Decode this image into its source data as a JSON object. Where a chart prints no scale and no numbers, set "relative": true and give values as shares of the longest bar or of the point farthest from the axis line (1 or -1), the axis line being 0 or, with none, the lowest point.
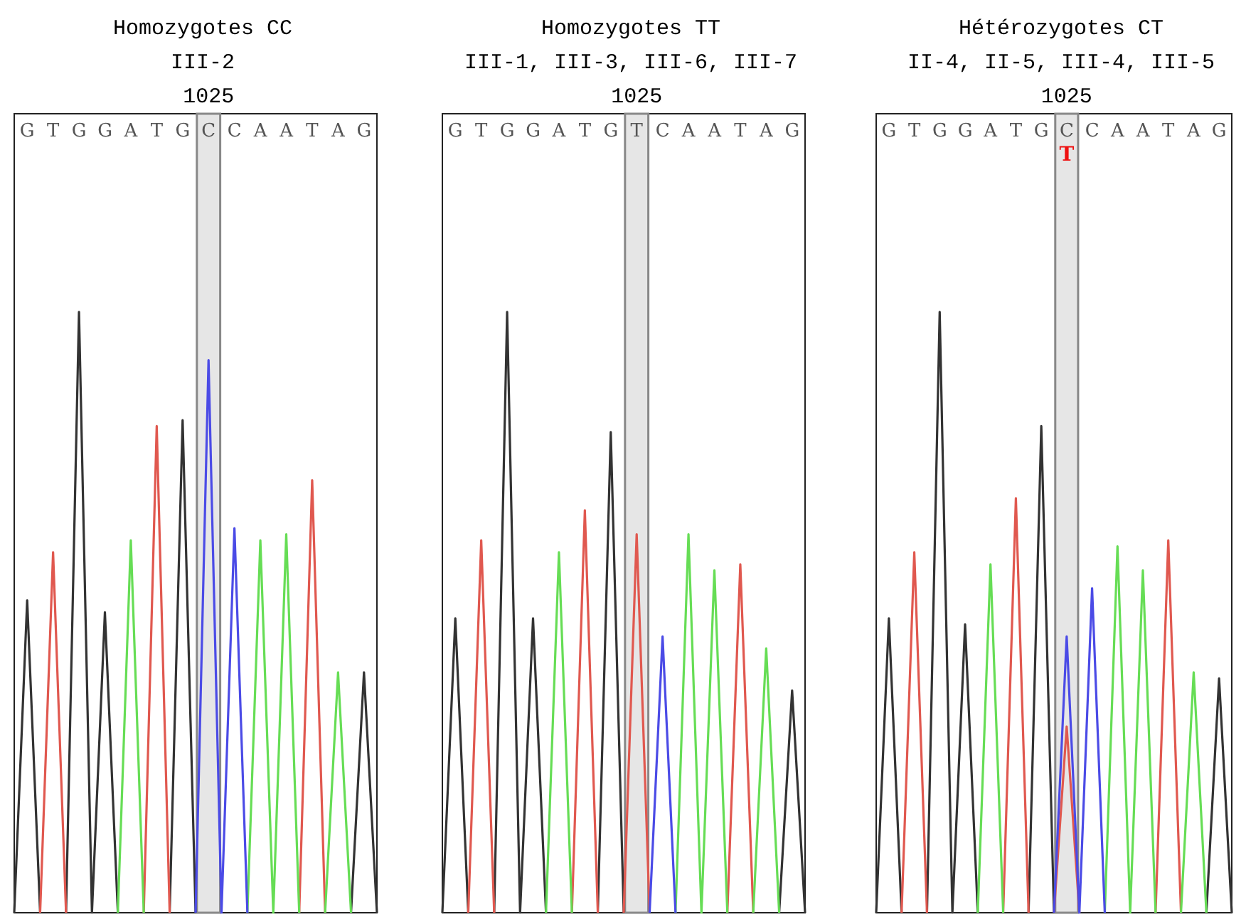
{
  "chart_data": [
    {
      "type": "line",
      "title": "Homozygotes CC",
      "subtitle": "III-2",
      "relative": true,
      "marker": "none",
      "categories": [
        null,
        "G",
        null,
        "T",
        null,
        "G",
        null,
        "G",
        null,
        "A",
        null,
        "T",
        null,
        "G",
        null,
        "C",
        null,
        "C",
        null,
        "A",
        null,
        "A",
        null,
        "T",
        null,
        "A",
        null,
        "G",
        null
      ],
      "annotations": [
        "1025"
      ],
      "series": [
        {
          "color": "#333333",
          "values": [
            0,
            0.52,
            0,
            null,
            0,
            1,
            0,
            0.5,
            0,
            null,
            null,
            null,
            0,
            0.82,
            0,
            null,
            null,
            null,
            null,
            null,
            null,
            null,
            null,
            null,
            null,
            null,
            0,
            0.4,
            0
          ]
        },
        {
          "color": "#e0584f",
          "values": [
            null,
            null,
            0,
            0.6,
            0,
            null,
            null,
            null,
            null,
            null,
            0,
            0.81,
            0,
            null,
            null,
            null,
            null,
            null,
            null,
            null,
            null,
            null,
            0,
            0.72,
            0,
            null,
            null,
            null,
            null
          ]
        },
        {
          "color": "#66dd55",
          "values": [
            null,
            null,
            null,
            null,
            null,
            null,
            null,
            null,
            0,
            0.62,
            0,
            null,
            null,
            null,
            null,
            null,
            null,
            null,
            0,
            0.62,
            0,
            0.63,
            0,
            null,
            0,
            0.4,
            0,
            null,
            null
          ]
        },
        {
          "color": "#4b4be6",
          "values": [
            null,
            null,
            null,
            null,
            null,
            null,
            null,
            null,
            null,
            null,
            null,
            null,
            null,
            null,
            0,
            0.92,
            0,
            0.64,
            0,
            null,
            null,
            null,
            null,
            null,
            null,
            null,
            null,
            null,
            null
          ]
        }
      ]
    },
    {
      "type": "line",
      "title": "Homozygotes TT",
      "subtitle": "III-1, III-3, III-6, III-7",
      "relative": true,
      "marker": "none",
      "categories": [
        null,
        "G",
        null,
        "T",
        null,
        "G",
        null,
        "G",
        null,
        "A",
        null,
        "T",
        null,
        "G",
        null,
        "T",
        null,
        "C",
        null,
        "A",
        null,
        "A",
        null,
        "T",
        null,
        "A",
        null,
        "G",
        null
      ],
      "annotations": [
        "1025"
      ],
      "series": [
        {
          "color": "#333333",
          "values": [
            0,
            0.49,
            0,
            null,
            0,
            1,
            0,
            0.49,
            0,
            null,
            null,
            null,
            0,
            0.8,
            0,
            null,
            null,
            null,
            null,
            null,
            null,
            null,
            null,
            null,
            null,
            null,
            0,
            0.37,
            0
          ]
        },
        {
          "color": "#e0584f",
          "values": [
            null,
            null,
            0,
            0.62,
            0,
            null,
            null,
            null,
            null,
            null,
            0,
            0.67,
            0,
            null,
            0,
            0.63,
            0,
            null,
            null,
            null,
            null,
            null,
            0,
            0.58,
            0,
            null,
            null,
            null,
            null
          ]
        },
        {
          "color": "#66dd55",
          "values": [
            null,
            null,
            null,
            null,
            null,
            null,
            null,
            null,
            0,
            0.6,
            0,
            null,
            null,
            null,
            null,
            null,
            null,
            null,
            0,
            0.63,
            0,
            0.57,
            0,
            null,
            0,
            0.44,
            0,
            null,
            null
          ]
        },
        {
          "color": "#4b4be6",
          "values": [
            null,
            null,
            null,
            null,
            null,
            null,
            null,
            null,
            null,
            null,
            null,
            null,
            null,
            null,
            null,
            null,
            0,
            0.46,
            0,
            null,
            null,
            null,
            null,
            null,
            null,
            null,
            null,
            null,
            null
          ]
        }
      ]
    },
    {
      "type": "line",
      "title": "Hétérozygotes CT",
      "subtitle": "II-4, II-5, III-4, III-5",
      "relative": true,
      "marker": "none",
      "categories": [
        null,
        "G",
        null,
        "T",
        null,
        "G",
        null,
        "G",
        null,
        "A",
        null,
        "T",
        null,
        "G",
        null,
        "C",
        null,
        "C",
        null,
        "A",
        null,
        "A",
        null,
        "T",
        null,
        "A",
        null,
        "G",
        null
      ],
      "annotations": [
        "1025",
        "T"
      ],
      "series": [
        {
          "color": "#333333",
          "values": [
            0,
            0.49,
            0,
            null,
            0,
            1,
            0,
            0.48,
            0,
            null,
            null,
            null,
            0,
            0.81,
            0,
            null,
            null,
            null,
            null,
            null,
            null,
            null,
            null,
            null,
            null,
            null,
            0,
            0.39,
            0
          ]
        },
        {
          "color": "#e0584f",
          "values": [
            null,
            null,
            0,
            0.6,
            0,
            null,
            null,
            null,
            null,
            null,
            0,
            0.69,
            0,
            null,
            0,
            0.31,
            0,
            null,
            null,
            null,
            null,
            null,
            0,
            0.62,
            0,
            null,
            null,
            null,
            null
          ]
        },
        {
          "color": "#66dd55",
          "values": [
            null,
            null,
            null,
            null,
            null,
            null,
            null,
            null,
            0,
            0.58,
            0,
            null,
            null,
            null,
            null,
            null,
            null,
            null,
            0,
            0.61,
            0,
            0.57,
            0,
            null,
            0,
            0.4,
            0,
            null,
            null
          ]
        },
        {
          "color": "#4b4be6",
          "values": [
            null,
            null,
            null,
            null,
            null,
            null,
            null,
            null,
            null,
            null,
            null,
            null,
            null,
            null,
            0,
            0.46,
            0,
            0.54,
            0,
            null,
            null,
            null,
            null,
            null,
            null,
            null,
            null,
            null,
            null
          ]
        }
      ]
    }
  ]
}
